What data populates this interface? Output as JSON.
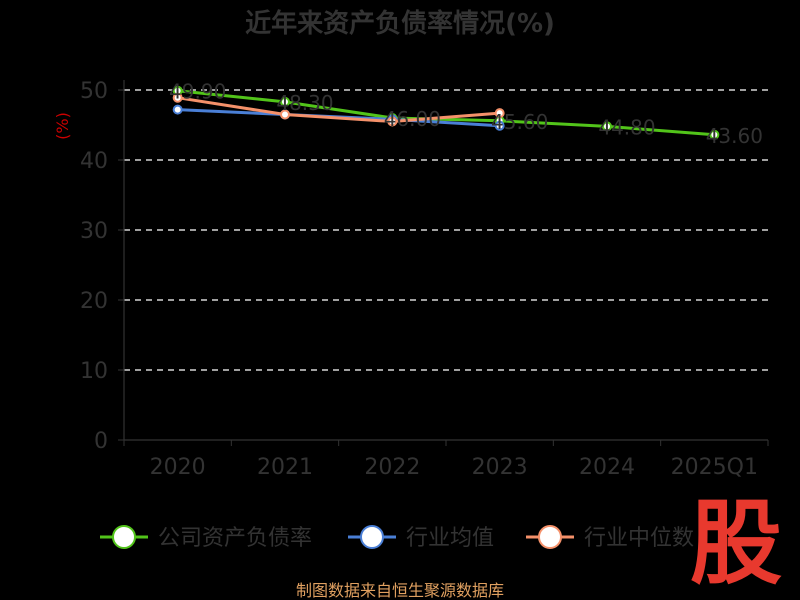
{
  "chart_data": {
    "type": "line",
    "title": "近年来资产负债率情况(%)",
    "ylabel": "(%)",
    "xlabel": "",
    "categories": [
      "2020",
      "2021",
      "2022",
      "2023",
      "2024",
      "2025Q1"
    ],
    "ylim": [
      0,
      50
    ],
    "yticks": [
      0,
      10,
      20,
      30,
      40,
      50
    ],
    "grid": true,
    "legend_position": "bottom",
    "series": [
      {
        "name": "公司资产负债率",
        "color": "#52c41a",
        "values": [
          49.9,
          48.3,
          46.0,
          45.6,
          44.8,
          43.6
        ]
      },
      {
        "name": "行业均值",
        "color": "#4a7fd6",
        "values": [
          47.2,
          46.5,
          45.8,
          44.9,
          null,
          null
        ]
      },
      {
        "name": "行业中位数",
        "color": "#f5916a",
        "values": [
          48.9,
          46.5,
          45.5,
          46.7,
          null,
          null
        ]
      }
    ]
  },
  "source": "制图数据来自恒生聚源数据库",
  "watermark": "股"
}
